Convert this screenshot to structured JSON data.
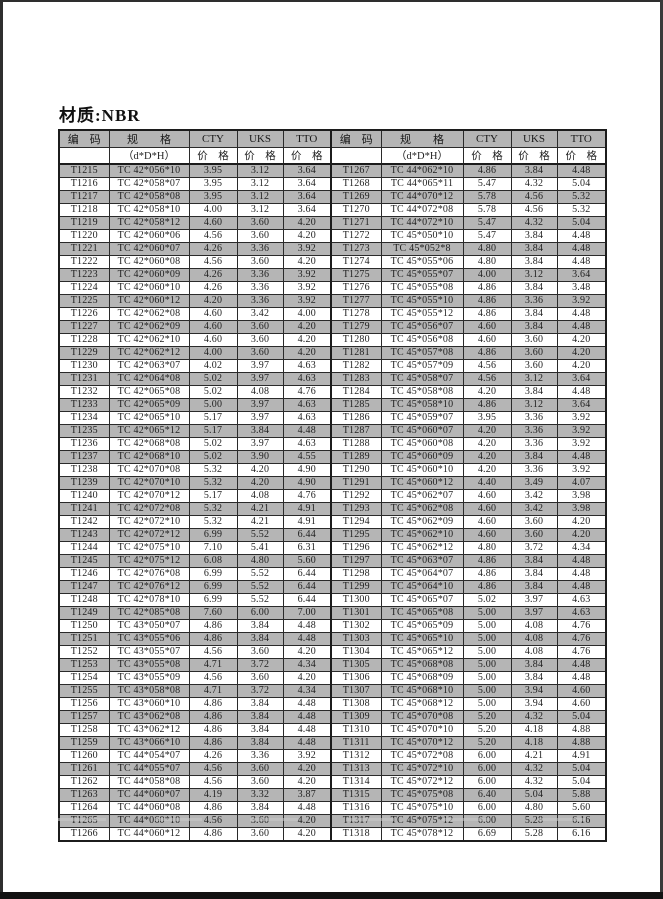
{
  "page": {
    "title": "材质:NBR"
  },
  "colors": {
    "row_shade": "#b5b5b5",
    "header_shade": "#b5b5b5",
    "border": "#1c1c1c",
    "text": "#1f1f1f"
  },
  "table": {
    "header_row1": [
      "编　码",
      "规　　格",
      "CTY",
      "UKS",
      "TTO",
      "编　码",
      "规　　格",
      "CTY",
      "UKS",
      "TTO"
    ],
    "header_row2": [
      "",
      "（d*D*H）",
      "价　格",
      "价　格",
      "价　格",
      "",
      "（d*D*H）",
      "价　格",
      "价　格",
      "价　格"
    ],
    "left_rows": [
      [
        "T1215",
        "TC 42*056*10",
        "3.95",
        "3.12",
        "3.64"
      ],
      [
        "T1216",
        "TC 42*058*07",
        "3.95",
        "3.12",
        "3.64"
      ],
      [
        "T1217",
        "TC 42*058*08",
        "3.95",
        "3.12",
        "3.64"
      ],
      [
        "T1218",
        "TC 42*058*10",
        "4.00",
        "3.12",
        "3.64"
      ],
      [
        "T1219",
        "TC 42*058*12",
        "4.60",
        "3.60",
        "4.20"
      ],
      [
        "T1220",
        "TC 42*060*06",
        "4.56",
        "3.60",
        "4.20"
      ],
      [
        "T1221",
        "TC 42*060*07",
        "4.26",
        "3.36",
        "3.92"
      ],
      [
        "T1222",
        "TC 42*060*08",
        "4.56",
        "3.60",
        "4.20"
      ],
      [
        "T1223",
        "TC 42*060*09",
        "4.26",
        "3.36",
        "3.92"
      ],
      [
        "T1224",
        "TC 42*060*10",
        "4.26",
        "3.36",
        "3.92"
      ],
      [
        "T1225",
        "TC 42*060*12",
        "4.20",
        "3.36",
        "3.92"
      ],
      [
        "T1226",
        "TC 42*062*08",
        "4.60",
        "3.42",
        "4.00"
      ],
      [
        "T1227",
        "TC 42*062*09",
        "4.60",
        "3.60",
        "4.20"
      ],
      [
        "T1228",
        "TC 42*062*10",
        "4.60",
        "3.60",
        "4.20"
      ],
      [
        "T1229",
        "TC 42*062*12",
        "4.00",
        "3.60",
        "4.20"
      ],
      [
        "T1230",
        "TC 42*063*07",
        "4.02",
        "3.97",
        "4.63"
      ],
      [
        "T1231",
        "TC 42*064*08",
        "5.02",
        "3.97",
        "4.63"
      ],
      [
        "T1232",
        "TC 42*065*08",
        "5.02",
        "4.08",
        "4.76"
      ],
      [
        "T1233",
        "TC 42*065*09",
        "5.00",
        "3.97",
        "4.63"
      ],
      [
        "T1234",
        "TC 42*065*10",
        "5.17",
        "3.97",
        "4.63"
      ],
      [
        "T1235",
        "TC 42*065*12",
        "5.17",
        "3.84",
        "4.48"
      ],
      [
        "T1236",
        "TC 42*068*08",
        "5.02",
        "3.97",
        "4.63"
      ],
      [
        "T1237",
        "TC 42*068*10",
        "5.02",
        "3.90",
        "4.55"
      ],
      [
        "T1238",
        "TC 42*070*08",
        "5.32",
        "4.20",
        "4.90"
      ],
      [
        "T1239",
        "TC 42*070*10",
        "5.32",
        "4.20",
        "4.90"
      ],
      [
        "T1240",
        "TC 42*070*12",
        "5.17",
        "4.08",
        "4.76"
      ],
      [
        "T1241",
        "TC 42*072*08",
        "5.32",
        "4.21",
        "4.91"
      ],
      [
        "T1242",
        "TC 42*072*10",
        "5.32",
        "4.21",
        "4.91"
      ],
      [
        "T1243",
        "TC 42*072*12",
        "6.99",
        "5.52",
        "6.44"
      ],
      [
        "T1244",
        "TC 42*075*10",
        "7.10",
        "5.41",
        "6.31"
      ],
      [
        "T1245",
        "TC 42*075*12",
        "6.08",
        "4.80",
        "5.60"
      ],
      [
        "T1246",
        "TC 42*076*08",
        "6.99",
        "5.52",
        "6.44"
      ],
      [
        "T1247",
        "TC 42*076*12",
        "6.99",
        "5.52",
        "6.44"
      ],
      [
        "T1248",
        "TC 42*078*10",
        "6.99",
        "5.52",
        "6.44"
      ],
      [
        "T1249",
        "TC 42*085*08",
        "7.60",
        "6.00",
        "7.00"
      ],
      [
        "T1250",
        "TC 43*050*07",
        "4.86",
        "3.84",
        "4.48"
      ],
      [
        "T1251",
        "TC 43*055*06",
        "4.86",
        "3.84",
        "4.48"
      ],
      [
        "T1252",
        "TC 43*055*07",
        "4.56",
        "3.60",
        "4.20"
      ],
      [
        "T1253",
        "TC 43*055*08",
        "4.71",
        "3.72",
        "4.34"
      ],
      [
        "T1254",
        "TC 43*055*09",
        "4.56",
        "3.60",
        "4.20"
      ],
      [
        "T1255",
        "TC 43*058*08",
        "4.71",
        "3.72",
        "4.34"
      ],
      [
        "T1256",
        "TC 43*060*10",
        "4.86",
        "3.84",
        "4.48"
      ],
      [
        "T1257",
        "TC 43*062*08",
        "4.86",
        "3.84",
        "4.48"
      ],
      [
        "T1258",
        "TC 43*062*12",
        "4.86",
        "3.84",
        "4.48"
      ],
      [
        "T1259",
        "TC 43*066*10",
        "4.86",
        "3.84",
        "4.48"
      ],
      [
        "T1260",
        "TC 44*054*07",
        "4.26",
        "3.36",
        "3.92"
      ],
      [
        "T1261",
        "TC 44*055*07",
        "4.56",
        "3.60",
        "4.20"
      ],
      [
        "T1262",
        "TC 44*058*08",
        "4.56",
        "3.60",
        "4.20"
      ],
      [
        "T1263",
        "TC 44*060*07",
        "4.19",
        "3.32",
        "3.87"
      ],
      [
        "T1264",
        "TC 44*060*08",
        "4.86",
        "3.84",
        "4.48"
      ],
      [
        "T1265",
        "TC 44*060*10",
        "4.56",
        "3.60",
        "4.20"
      ],
      [
        "T1266",
        "TC 44*060*12",
        "4.86",
        "3.60",
        "4.20"
      ]
    ],
    "right_rows": [
      [
        "T1267",
        "TC 44*062*10",
        "4.86",
        "3.84",
        "4.48"
      ],
      [
        "T1268",
        "TC 44*065*11",
        "5.47",
        "4.32",
        "5.04"
      ],
      [
        "T1269",
        "TC 44*070*12",
        "5.78",
        "4.56",
        "5.32"
      ],
      [
        "T1270",
        "TC 44*072*08",
        "5.78",
        "4.56",
        "5.32"
      ],
      [
        "T1271",
        "TC 44*072*10",
        "5.47",
        "4.32",
        "5.04"
      ],
      [
        "T1272",
        "TC 45*050*10",
        "5.47",
        "3.84",
        "4.48"
      ],
      [
        "T1273",
        "TC 45*052*8",
        "4.80",
        "3.84",
        "4.48"
      ],
      [
        "T1274",
        "TC 45*055*06",
        "4.80",
        "3.84",
        "4.48"
      ],
      [
        "T1275",
        "TC 45*055*07",
        "4.00",
        "3.12",
        "3.64"
      ],
      [
        "T1276",
        "TC 45*055*08",
        "4.86",
        "3.84",
        "3.48"
      ],
      [
        "T1277",
        "TC 45*055*10",
        "4.86",
        "3.36",
        "3.92"
      ],
      [
        "T1278",
        "TC 45*055*12",
        "4.86",
        "3.84",
        "4.48"
      ],
      [
        "T1279",
        "TC 45*056*07",
        "4.60",
        "3.84",
        "4.48"
      ],
      [
        "T1280",
        "TC 45*056*08",
        "4.60",
        "3.60",
        "4.20"
      ],
      [
        "T1281",
        "TC 45*057*08",
        "4.86",
        "3.60",
        "4.20"
      ],
      [
        "T1282",
        "TC 45*057*09",
        "4.56",
        "3.60",
        "4.20"
      ],
      [
        "T1283",
        "TC 45*058*07",
        "4.56",
        "3.12",
        "3.64"
      ],
      [
        "T1284",
        "TC 45*058*08",
        "4.20",
        "3.84",
        "4.48"
      ],
      [
        "T1285",
        "TC 45*058*10",
        "4.86",
        "3.12",
        "3.64"
      ],
      [
        "T1286",
        "TC 45*059*07",
        "3.95",
        "3.36",
        "3.92"
      ],
      [
        "T1287",
        "TC 45*060*07",
        "4.20",
        "3.36",
        "3.92"
      ],
      [
        "T1288",
        "TC 45*060*08",
        "4.20",
        "3.36",
        "3.92"
      ],
      [
        "T1289",
        "TC 45*060*09",
        "4.20",
        "3.84",
        "4.48"
      ],
      [
        "T1290",
        "TC 45*060*10",
        "4.20",
        "3.36",
        "3.92"
      ],
      [
        "T1291",
        "TC 45*060*12",
        "4.40",
        "3.49",
        "4.07"
      ],
      [
        "T1292",
        "TC 45*062*07",
        "4.60",
        "3.42",
        "3.98"
      ],
      [
        "T1293",
        "TC 45*062*08",
        "4.60",
        "3.42",
        "3.98"
      ],
      [
        "T1294",
        "TC 45*062*09",
        "4.60",
        "3.60",
        "4.20"
      ],
      [
        "T1295",
        "TC 45*062*10",
        "4.60",
        "3.60",
        "4.20"
      ],
      [
        "T1296",
        "TC 45*062*12",
        "4.80",
        "3.72",
        "4.34"
      ],
      [
        "T1297",
        "TC 45*063*07",
        "4.86",
        "3.84",
        "4.48"
      ],
      [
        "T1298",
        "TC 45*064*07",
        "4.86",
        "3.84",
        "4.48"
      ],
      [
        "T1299",
        "TC 45*064*10",
        "4.86",
        "3.84",
        "4.48"
      ],
      [
        "T1300",
        "TC 45*065*07",
        "5.02",
        "3.97",
        "4.63"
      ],
      [
        "T1301",
        "TC 45*065*08",
        "5.00",
        "3.97",
        "4.63"
      ],
      [
        "T1302",
        "TC 45*065*09",
        "5.00",
        "4.08",
        "4.76"
      ],
      [
        "T1303",
        "TC 45*065*10",
        "5.00",
        "4.08",
        "4.76"
      ],
      [
        "T1304",
        "TC 45*065*12",
        "5.00",
        "4.08",
        "4.76"
      ],
      [
        "T1305",
        "TC 45*068*08",
        "5.00",
        "3.84",
        "4.48"
      ],
      [
        "T1306",
        "TC 45*068*09",
        "5.00",
        "3.84",
        "4.48"
      ],
      [
        "T1307",
        "TC 45*068*10",
        "5.00",
        "3.94",
        "4.60"
      ],
      [
        "T1308",
        "TC 45*068*12",
        "5.00",
        "3.94",
        "4.60"
      ],
      [
        "T1309",
        "TC 45*070*08",
        "5.20",
        "4.32",
        "5.04"
      ],
      [
        "T1310",
        "TC 45*070*10",
        "5.20",
        "4.18",
        "4.88"
      ],
      [
        "T1311",
        "TC 45*070*12",
        "5.20",
        "4.18",
        "4.88"
      ],
      [
        "T1312",
        "TC 45*072*08",
        "6.00",
        "4.21",
        "4.91"
      ],
      [
        "T1313",
        "TC 45*072*10",
        "6.00",
        "4.32",
        "5.04"
      ],
      [
        "T1314",
        "TC 45*072*12",
        "6.00",
        "4.32",
        "5.04"
      ],
      [
        "T1315",
        "TC 45*075*08",
        "6.40",
        "5.04",
        "5.88"
      ],
      [
        "T1316",
        "TC 45*075*10",
        "6.00",
        "4.80",
        "5.60"
      ],
      [
        "T1317",
        "TC 45*075*12",
        "6.00",
        "5.28",
        "6.16"
      ],
      [
        "T1318",
        "TC 45*078*12",
        "6.69",
        "5.28",
        "6.16"
      ]
    ]
  }
}
